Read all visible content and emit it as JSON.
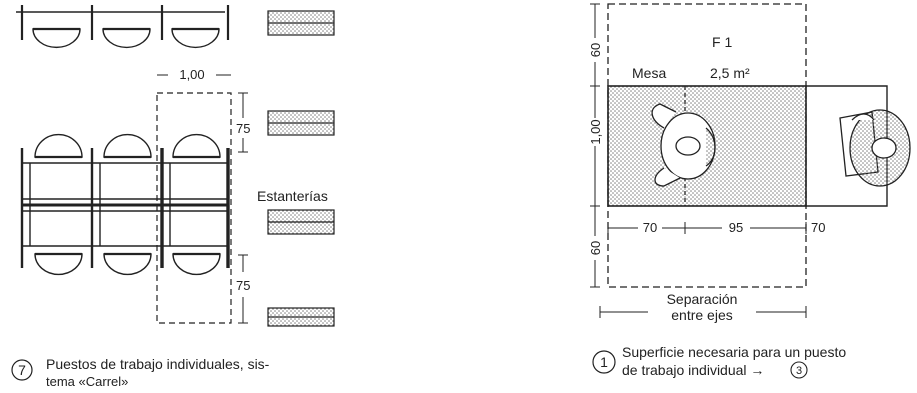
{
  "left_figure": {
    "dim_width": "1,00",
    "dim_top": "75",
    "dim_bottom": "75",
    "shelves_label": "Estanterías",
    "caption_number": "7",
    "caption_line1": "Puestos de trabajo individuales, sis-",
    "caption_line2": "tema «Carrel»"
  },
  "right_figure": {
    "area_label": "F 1",
    "area_value": "2,5 m²",
    "table_label": "Mesa",
    "dim_top": "60",
    "dim_middle": "1,00",
    "dim_bottom": "60",
    "dim_70_left": "70",
    "dim_95": "95",
    "dim_70_right": "70",
    "axis_label_line1": "Separación",
    "axis_label_line2": "entre ejes",
    "caption_number": "1",
    "caption_line1": "Superficie necesaria para un puesto",
    "caption_line2": "de trabajo individual →",
    "caption_ref": "3"
  },
  "colors": {
    "ink": "#222222",
    "dots": "#888888"
  }
}
